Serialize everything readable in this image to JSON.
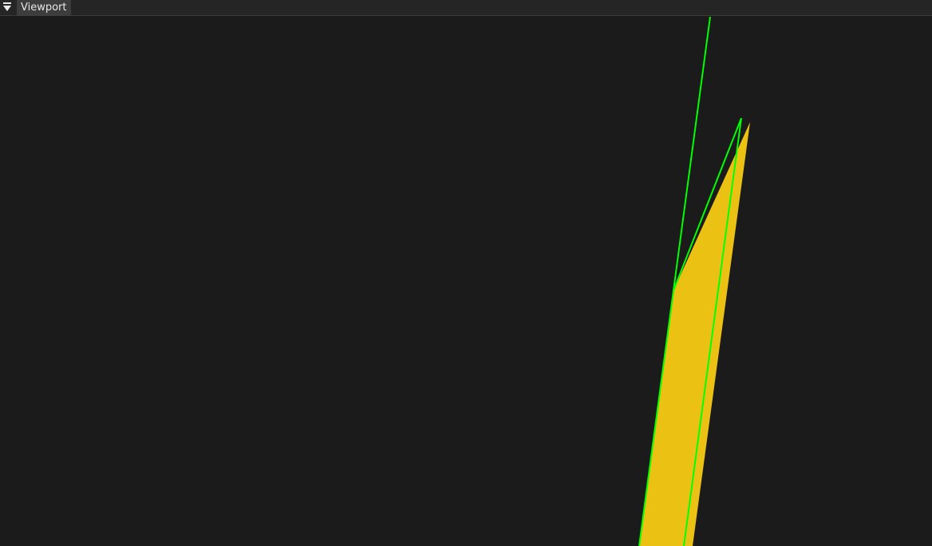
{
  "tabbar": {
    "menu_icon": "hamburger-dropdown-icon",
    "tabs": [
      {
        "label": "Viewport"
      }
    ]
  },
  "viewport": {
    "background_color": "#1b1b1b",
    "mesh_fill_color": "#ebc214",
    "wireframe_color": "#00ff00"
  }
}
